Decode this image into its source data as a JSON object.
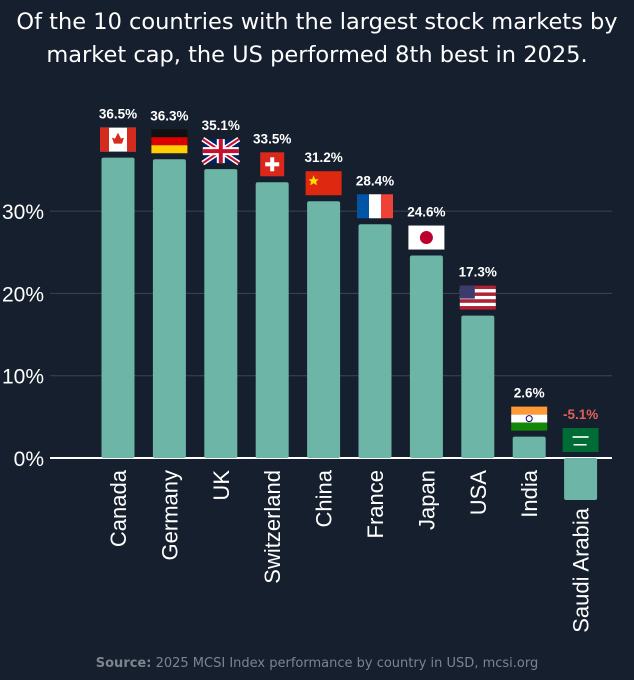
{
  "title": "Of the 10 countries with the largest stock markets by market cap, the US performed 8th best in 2025.",
  "source_label": "Source:",
  "source_text": "2025 MCSI Index performance by country in USD, mcsi.org",
  "colors": {
    "background": "#151f2d",
    "bar": "#6db5a6",
    "negative_label": "#e0605a",
    "label": "#ffffff"
  },
  "chart_data": {
    "type": "bar",
    "categories": [
      "Canada",
      "Germany",
      "UK",
      "Switzerland",
      "China",
      "France",
      "Japan",
      "USA",
      "India",
      "Saudi Arabia"
    ],
    "values": [
      36.5,
      36.3,
      35.1,
      33.5,
      31.2,
      28.4,
      24.6,
      17.3,
      2.6,
      -5.1
    ],
    "data_labels": [
      "36.5%",
      "36.3%",
      "35.1%",
      "33.5%",
      "31.2%",
      "28.4%",
      "24.6%",
      "17.3%",
      "2.6%",
      "-5.1%"
    ],
    "flags": [
      "canada-flag",
      "germany-flag",
      "uk-flag",
      "switzerland-flag",
      "china-flag",
      "france-flag",
      "japan-flag",
      "usa-flag",
      "india-flag",
      "saudi-arabia-flag"
    ],
    "yticks": [
      0,
      10,
      20,
      30
    ],
    "ytick_labels": [
      "0%",
      "10%",
      "20%",
      "30%"
    ],
    "grid": true,
    "ylim": [
      -6,
      40
    ]
  }
}
